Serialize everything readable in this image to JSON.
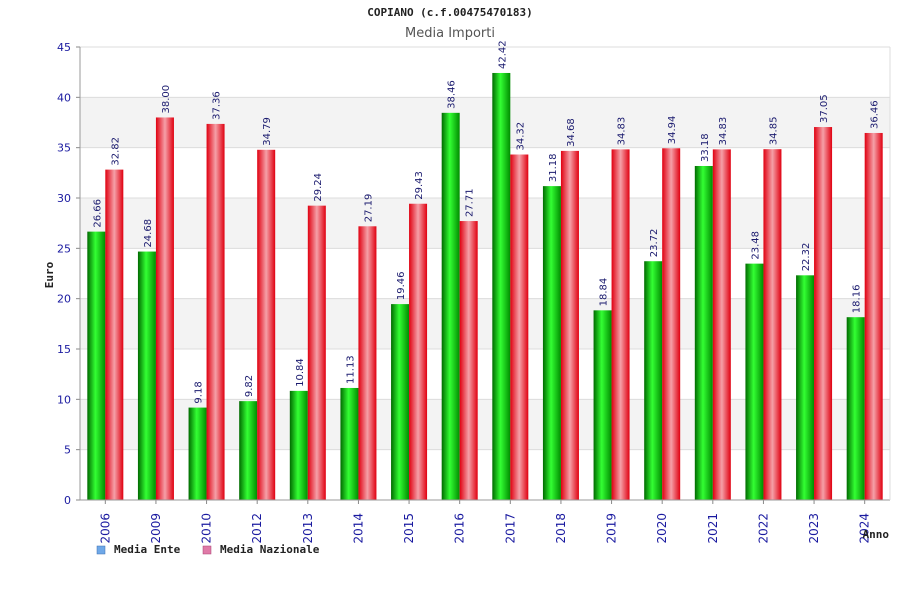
{
  "chart_data": {
    "type": "bar",
    "title": "COPIANO (c.f.00475470183)",
    "subtitle": "Media Importi",
    "xlabel": "Anno",
    "ylabel": "Euro",
    "ylim": [
      0,
      45
    ],
    "yticks": [
      0,
      5,
      10,
      15,
      20,
      25,
      30,
      35,
      40,
      45
    ],
    "grid": true,
    "legend_position": "bottom-left",
    "categories": [
      "2006",
      "2009",
      "2010",
      "2012",
      "2013",
      "2014",
      "2015",
      "2016",
      "2017",
      "2018",
      "2019",
      "2020",
      "2021",
      "2022",
      "2023",
      "2024"
    ],
    "series": [
      {
        "name": "Media Ente",
        "color": "#00b400",
        "legend_color": "#6fa8e8",
        "values": [
          26.66,
          24.68,
          9.18,
          9.82,
          10.84,
          11.13,
          19.46,
          38.46,
          42.42,
          31.18,
          18.84,
          23.72,
          33.18,
          23.48,
          22.32,
          18.16
        ],
        "labels": [
          "26.66",
          "24.68",
          "9.18",
          "9.82",
          "10.84",
          "11.13",
          "19.46",
          "38.46",
          "42.42",
          "31.18",
          "18.84",
          "23.72",
          "33.18",
          "23.48",
          "22.32",
          "18.16"
        ]
      },
      {
        "name": "Media Nazionale",
        "color": "#e8202a",
        "legend_color": "#e07aa8",
        "values": [
          32.82,
          38.0,
          37.36,
          34.79,
          29.24,
          27.19,
          29.43,
          27.71,
          34.32,
          34.68,
          34.83,
          34.94,
          34.83,
          34.85,
          37.05,
          36.46
        ],
        "labels": [
          "32.82",
          "38.00",
          "37.36",
          "34.79",
          "29.24",
          "27.19",
          "29.43",
          "27.71",
          "34.32",
          "34.68",
          "34.83",
          "34.94",
          "34.83",
          "34.85",
          "37.05",
          "36.46"
        ]
      }
    ]
  }
}
